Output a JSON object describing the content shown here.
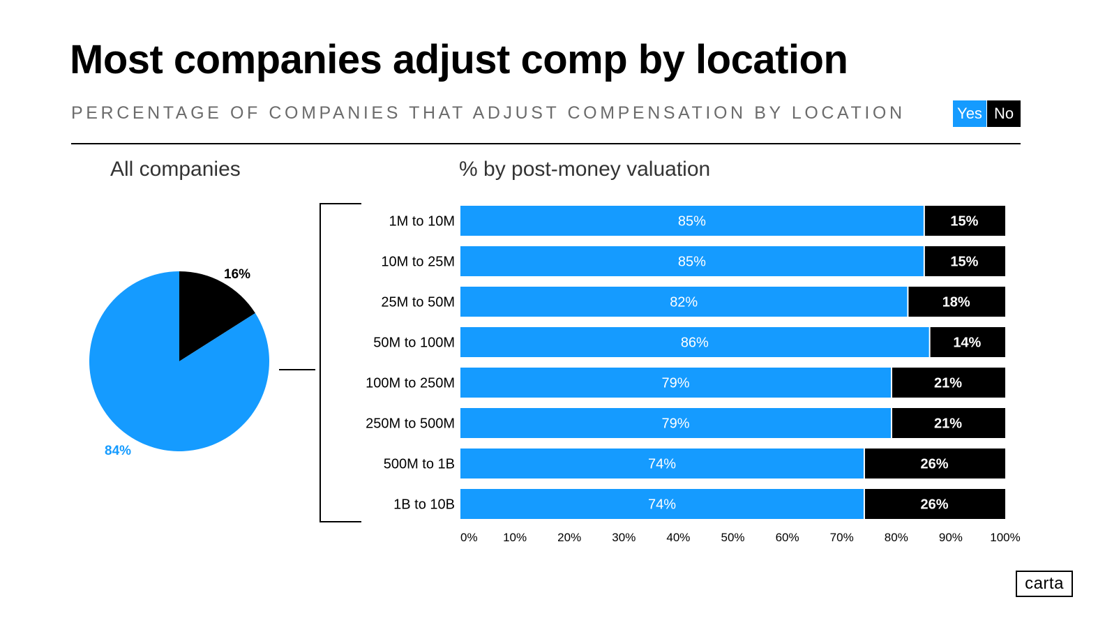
{
  "header": {
    "title": "Most companies adjust comp by location",
    "subtitle": "PERCENTAGE OF COMPANIES THAT ADJUST COMPENSATION BY LOCATION"
  },
  "legend": {
    "yes": "Yes",
    "no": "No"
  },
  "colors": {
    "yes": "#159bff",
    "no": "#000000",
    "text": "#000000"
  },
  "left_panel": {
    "label": "All companies"
  },
  "right_panel": {
    "label": "% by post-money valuation"
  },
  "logo": {
    "text": "carta"
  },
  "chart_data": [
    {
      "type": "pie",
      "title": "All companies",
      "slices": [
        {
          "name": "Yes",
          "value": 84,
          "label": "84%"
        },
        {
          "name": "No",
          "value": 16,
          "label": "16%"
        }
      ]
    },
    {
      "type": "bar",
      "orientation": "horizontal",
      "stacked": true,
      "title": "% by post-money valuation",
      "categories": [
        "1M to 10M",
        "10M to 25M",
        "25M to 50M",
        "50M to 100M",
        "100M to 250M",
        "250M to 500M",
        "500M to 1B",
        "1B to 10B"
      ],
      "series": [
        {
          "name": "Yes",
          "values": [
            85,
            85,
            82,
            86,
            79,
            79,
            74,
            74
          ]
        },
        {
          "name": "No",
          "values": [
            15,
            15,
            18,
            14,
            21,
            21,
            26,
            26
          ]
        }
      ],
      "xlim": [
        0,
        100
      ],
      "xticks": [
        "0%",
        "10%",
        "20%",
        "30%",
        "40%",
        "50%",
        "60%",
        "70%",
        "80%",
        "90%",
        "100%"
      ],
      "xlabel": "",
      "ylabel": "",
      "grid": false,
      "legend": "top-right"
    }
  ]
}
